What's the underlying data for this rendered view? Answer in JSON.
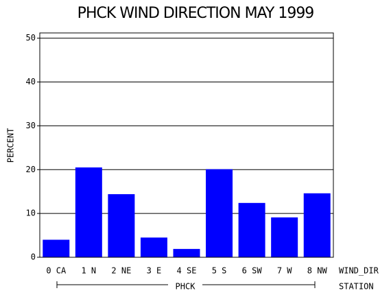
{
  "chart_data": {
    "type": "bar",
    "title": "PHCK WIND DIRECTION MAY 1999",
    "y_label": "PERCENT",
    "x_label": "WIND_DIR",
    "group_label": "STATION",
    "group": "PHCK",
    "categories": [
      "0 CA",
      "1 N",
      "2 NE",
      "3 E",
      "4 SE",
      "5 S",
      "6 SW",
      "7 W",
      "8 NW"
    ],
    "values": [
      4.0,
      20.5,
      14.4,
      4.5,
      1.9,
      20.1,
      12.4,
      9.1,
      14.6
    ],
    "color": "#0000ff",
    "ylim": [
      0,
      51.2
    ],
    "yticks": [
      0,
      10,
      20,
      30,
      40,
      50
    ],
    "grid": true
  }
}
